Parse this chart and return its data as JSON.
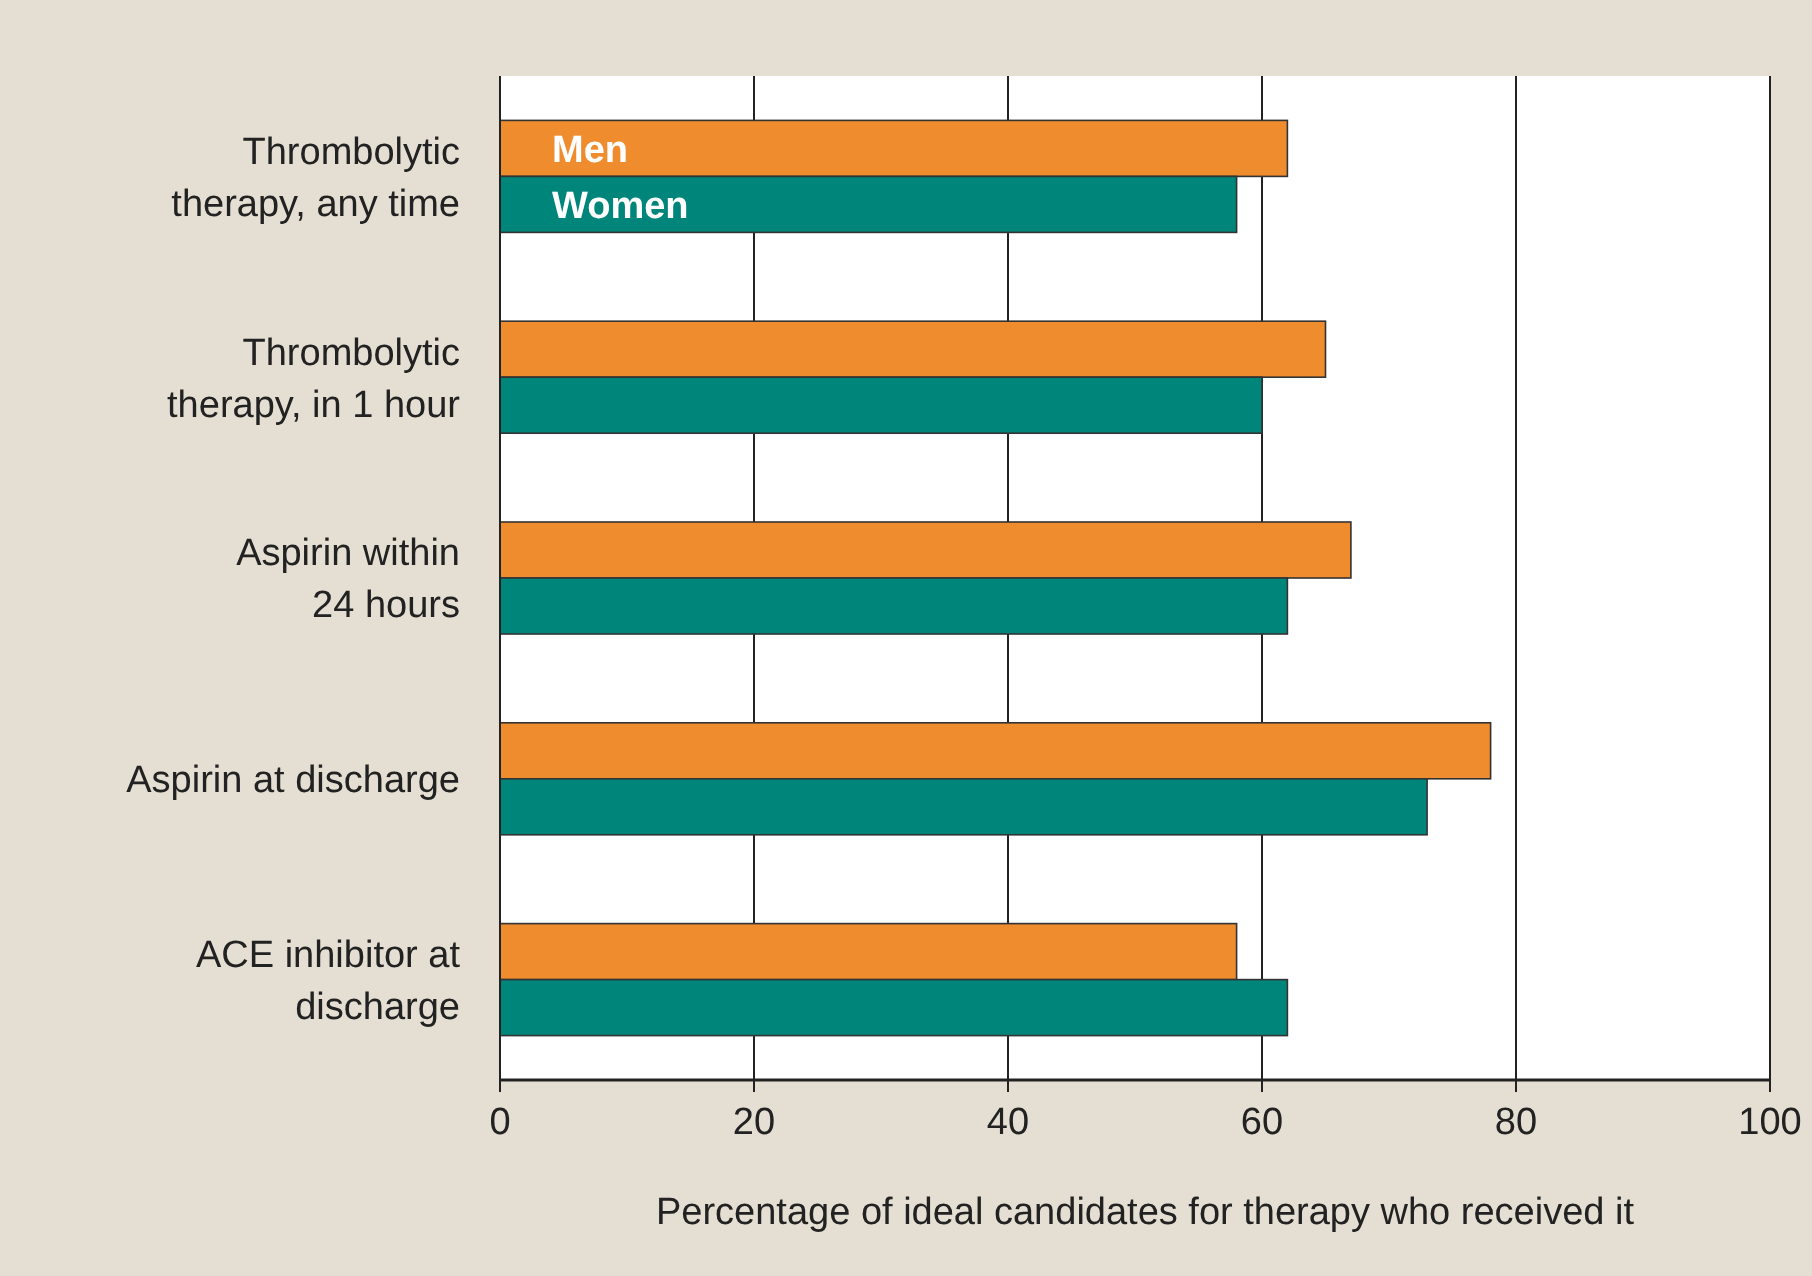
{
  "chart_data": {
    "type": "bar",
    "orientation": "horizontal",
    "xlabel": "Percentage of ideal candidates for therapy who received it",
    "categories": [
      "Thrombolytic\ntherapy, any time",
      "Thrombolytic\ntherapy, in 1 hour",
      "Aspirin within\n24 hours",
      "Aspirin at discharge",
      "ACE inhibitor at\ndischarge"
    ],
    "series": [
      {
        "name": "Men",
        "color": "#ee8c2e",
        "values": [
          62,
          65,
          67,
          78,
          58
        ]
      },
      {
        "name": "Women",
        "color": "#00857a",
        "values": [
          58,
          60,
          62,
          73,
          62
        ]
      }
    ],
    "xlim": [
      0,
      100
    ],
    "xticks": [
      0,
      20,
      40,
      60,
      80,
      100
    ],
    "grid": "x",
    "legend": "top left"
  }
}
